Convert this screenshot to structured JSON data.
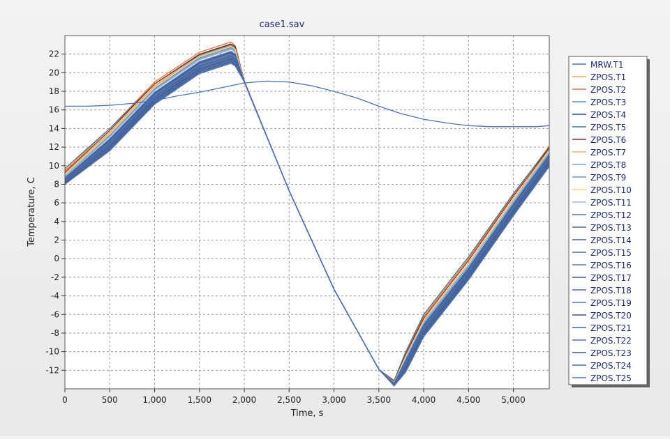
{
  "chart_data": {
    "type": "line",
    "title": "case1.sav",
    "xlabel": "Time, s",
    "ylabel": "Temperature, C",
    "xlim": [
      0,
      5400
    ],
    "ylim": [
      -14,
      24
    ],
    "grid": true,
    "legend_position": "right",
    "x_ticks": [
      0,
      500,
      1000,
      1500,
      2000,
      2500,
      3000,
      3500,
      4000,
      4500,
      5000
    ],
    "x_tick_labels": [
      "0",
      "500",
      "1,000",
      "1,500",
      "2,000",
      "2,500",
      "3,000",
      "3,500",
      "4,000",
      "4,500",
      "5,000"
    ],
    "y_ticks": [
      -12,
      -10,
      -8,
      -6,
      -4,
      -2,
      0,
      2,
      4,
      6,
      8,
      10,
      12,
      14,
      16,
      18,
      20,
      22
    ],
    "y_tick_labels": [
      "-12",
      "-10",
      "-8",
      "-6",
      "-4",
      "-2",
      "0",
      "2",
      "4",
      "6",
      "8",
      "10",
      "12",
      "14",
      "16",
      "18",
      "20",
      "22"
    ],
    "series": [
      {
        "name": "MRW.T1",
        "color": "#4a72b5",
        "x": [
          0,
          250,
          500,
          750,
          1000,
          1250,
          1500,
          1750,
          2000,
          2250,
          2500,
          2750,
          3000,
          3250,
          3500,
          3750,
          4000,
          4250,
          4500,
          4750,
          5000,
          5250,
          5400
        ],
        "y": [
          16.4,
          16.4,
          16.5,
          16.7,
          17.0,
          17.5,
          17.9,
          18.4,
          18.9,
          19.1,
          19.0,
          18.6,
          18.0,
          17.3,
          16.4,
          15.6,
          15.0,
          14.6,
          14.3,
          14.2,
          14.2,
          14.2,
          14.3
        ]
      },
      {
        "name": "ZPOS.T1",
        "color": "#f0a35a",
        "x": [
          0,
          500,
          1000,
          1500,
          1850,
          1900,
          2000,
          2500,
          3000,
          3500,
          3670,
          3800,
          4000,
          4500,
          5000,
          5400
        ],
        "y": [
          9.2,
          13.6,
          18.6,
          21.8,
          22.9,
          22.6,
          19.1,
          7.3,
          -3.3,
          -11.9,
          -13.3,
          -10.4,
          -6.6,
          -0.5,
          6.4,
          11.8
        ]
      },
      {
        "name": "ZPOS.T2",
        "color": "#e3723c",
        "x": [
          0,
          500,
          1000,
          1500,
          1850,
          1900,
          2000,
          2500,
          3000,
          3500,
          3670,
          3800,
          4000,
          4500,
          5000,
          5400
        ],
        "y": [
          9.5,
          14.0,
          19.0,
          22.2,
          23.3,
          22.9,
          19.1,
          7.3,
          -3.3,
          -11.9,
          -13.2,
          -10.2,
          -6.2,
          0.0,
          6.9,
          12.1
        ]
      },
      {
        "name": "ZPOS.T3",
        "color": "#5b88c0",
        "x": [
          0,
          500,
          1000,
          1500,
          1850,
          1900,
          2000,
          2500,
          3000,
          3500,
          3670,
          3800,
          4000,
          4500,
          5000,
          5400
        ],
        "y": [
          9.0,
          13.3,
          18.3,
          21.6,
          22.7,
          22.4,
          19.0,
          7.3,
          -3.3,
          -11.9,
          -13.3,
          -10.6,
          -6.8,
          -0.7,
          6.2,
          11.5
        ]
      },
      {
        "name": "ZPOS.T4",
        "color": "#2f4f8f",
        "x": [
          0,
          500,
          1000,
          1500,
          1850,
          1900,
          2000,
          2500,
          3000,
          3500,
          3670,
          3800,
          4000,
          4500,
          5000,
          5400
        ],
        "y": [
          8.6,
          12.8,
          17.8,
          21.1,
          22.2,
          21.9,
          19.0,
          7.3,
          -3.3,
          -11.9,
          -13.4,
          -11.0,
          -7.2,
          -1.1,
          5.8,
          11.0
        ]
      },
      {
        "name": "ZPOS.T5",
        "color": "#3a7d8c",
        "x": [
          0,
          500,
          1000,
          1500,
          1850,
          1900,
          2000,
          2500,
          3000,
          3500,
          3670,
          3800,
          4000,
          4500,
          5000,
          5400
        ],
        "y": [
          9.7,
          14.0,
          18.8,
          21.9,
          23.0,
          22.7,
          19.1,
          7.3,
          -3.3,
          -11.9,
          -13.1,
          -10.0,
          -6.0,
          0.2,
          7.0,
          12.0
        ]
      },
      {
        "name": "ZPOS.T6",
        "color": "#8b2c2c",
        "x": [
          0,
          500,
          1000,
          1500,
          1850,
          1900,
          2000,
          2500,
          3000,
          3500,
          3670,
          3800,
          4000,
          4500,
          5000,
          5400
        ],
        "y": [
          9.3,
          13.8,
          18.8,
          22.0,
          23.1,
          22.8,
          19.1,
          7.3,
          -3.3,
          -11.9,
          -13.2,
          -10.3,
          -6.4,
          -0.2,
          6.7,
          11.9
        ]
      },
      {
        "name": "ZPOS.T7",
        "color": "#e8b86a",
        "x": [
          0,
          500,
          1000,
          1500,
          1850,
          1900,
          2000,
          2500,
          3000,
          3500,
          3670,
          3800,
          4000,
          4500,
          5000,
          5400
        ],
        "y": [
          9.1,
          13.5,
          18.5,
          21.7,
          22.8,
          22.5,
          19.0,
          7.3,
          -3.3,
          -11.9,
          -13.3,
          -10.5,
          -6.7,
          -0.6,
          6.3,
          11.6
        ]
      },
      {
        "name": "ZPOS.T8",
        "color": "#7aa6d0",
        "x": [
          0,
          500,
          1000,
          1500,
          1850,
          1900,
          2000,
          2500,
          3000,
          3500,
          3670,
          3800,
          4000,
          4500,
          5000,
          5400
        ],
        "y": [
          8.9,
          13.2,
          18.2,
          21.5,
          22.6,
          22.3,
          19.0,
          7.3,
          -3.3,
          -11.9,
          -13.3,
          -10.7,
          -6.9,
          -0.8,
          6.1,
          11.4
        ]
      },
      {
        "name": "ZPOS.T9",
        "color": "#6d95c6",
        "x": [
          0,
          500,
          1000,
          1500,
          1850,
          1900,
          2000,
          2500,
          3000,
          3500,
          3670,
          3800,
          4000,
          4500,
          5000,
          5400
        ],
        "y": [
          8.8,
          13.1,
          18.1,
          21.4,
          22.5,
          22.2,
          19.0,
          7.3,
          -3.3,
          -11.9,
          -13.4,
          -10.8,
          -7.0,
          -0.9,
          6.0,
          11.3
        ]
      },
      {
        "name": "ZPOS.T10",
        "color": "#f2d28a",
        "x": [
          0,
          500,
          1000,
          1500,
          1850,
          1900,
          2000,
          2500,
          3000,
          3500,
          3670,
          3800,
          4000,
          4500,
          5000,
          5400
        ],
        "y": [
          9.0,
          13.4,
          18.4,
          21.7,
          22.8,
          22.5,
          19.0,
          7.3,
          -3.3,
          -11.9,
          -13.3,
          -10.5,
          -6.7,
          -0.6,
          6.3,
          11.6
        ]
      },
      {
        "name": "ZPOS.T11",
        "color": "#9fb8d8",
        "x": [
          0,
          500,
          1000,
          1500,
          1850,
          1900,
          2000,
          2500,
          3000,
          3500,
          3670,
          3800,
          4000,
          4500,
          5000,
          5400
        ],
        "y": [
          8.8,
          13.1,
          18.1,
          21.4,
          22.5,
          22.2,
          19.0,
          7.3,
          -3.3,
          -11.9,
          -13.4,
          -10.8,
          -7.0,
          -0.9,
          6.0,
          11.3
        ]
      },
      {
        "name": "ZPOS.T12",
        "color": "#5479b0",
        "x": [
          0,
          500,
          1000,
          1500,
          1850,
          1900,
          2000,
          2500,
          3000,
          3500,
          3670,
          3800,
          4000,
          4500,
          5000,
          5400
        ],
        "y": [
          8.7,
          12.9,
          17.9,
          21.2,
          22.3,
          22.0,
          19.0,
          7.3,
          -3.3,
          -11.9,
          -13.4,
          -10.9,
          -7.1,
          -1.0,
          5.9,
          11.2
        ]
      },
      {
        "name": "ZPOS.T13",
        "color": "#46669e",
        "x": [
          0,
          500,
          1000,
          1500,
          1850,
          1900,
          2000,
          2500,
          3000,
          3500,
          3670,
          3800,
          4000,
          4500,
          5000,
          5400
        ],
        "y": [
          8.6,
          12.8,
          17.8,
          21.1,
          22.2,
          21.9,
          19.0,
          7.3,
          -3.3,
          -11.9,
          -13.4,
          -11.0,
          -7.2,
          -1.1,
          5.8,
          11.1
        ]
      },
      {
        "name": "ZPOS.T14",
        "color": "#3f5f9a",
        "x": [
          0,
          500,
          1000,
          1500,
          1850,
          1900,
          2000,
          2500,
          3000,
          3500,
          3670,
          3800,
          4000,
          4500,
          5000,
          5400
        ],
        "y": [
          8.5,
          12.7,
          17.7,
          21.0,
          22.1,
          21.8,
          19.0,
          7.3,
          -3.3,
          -11.9,
          -13.4,
          -11.1,
          -7.3,
          -1.2,
          5.7,
          11.0
        ]
      },
      {
        "name": "ZPOS.T15",
        "color": "#4d6fa8",
        "x": [
          0,
          500,
          1000,
          1500,
          1850,
          1900,
          2000,
          2500,
          3000,
          3500,
          3670,
          3800,
          4000,
          4500,
          5000,
          5400
        ],
        "y": [
          8.5,
          12.6,
          17.6,
          20.9,
          22.0,
          21.7,
          19.0,
          7.3,
          -3.3,
          -11.9,
          -13.5,
          -11.2,
          -7.4,
          -1.3,
          5.6,
          10.9
        ]
      },
      {
        "name": "ZPOS.T16",
        "color": "#5a7cb4",
        "x": [
          0,
          500,
          1000,
          1500,
          1850,
          1900,
          2000,
          2500,
          3000,
          3500,
          3670,
          3800,
          4000,
          4500,
          5000,
          5400
        ],
        "y": [
          8.4,
          12.5,
          17.5,
          20.8,
          21.9,
          21.6,
          19.0,
          7.3,
          -3.3,
          -11.9,
          -13.5,
          -11.3,
          -7.5,
          -1.4,
          5.5,
          10.8
        ]
      },
      {
        "name": "ZPOS.T17",
        "color": "#3d5d96",
        "x": [
          0,
          500,
          1000,
          1500,
          1850,
          1900,
          2000,
          2500,
          3000,
          3500,
          3670,
          3800,
          4000,
          4500,
          5000,
          5400
        ],
        "y": [
          8.4,
          12.4,
          17.4,
          20.7,
          21.8,
          21.5,
          19.0,
          7.3,
          -3.3,
          -11.9,
          -13.5,
          -11.4,
          -7.6,
          -1.5,
          5.4,
          10.7
        ]
      },
      {
        "name": "ZPOS.T18",
        "color": "#4869a3",
        "x": [
          0,
          500,
          1000,
          1500,
          1850,
          1900,
          2000,
          2500,
          3000,
          3500,
          3670,
          3800,
          4000,
          4500,
          5000,
          5400
        ],
        "y": [
          8.3,
          12.3,
          17.3,
          20.6,
          21.7,
          21.4,
          19.0,
          7.3,
          -3.3,
          -11.9,
          -13.5,
          -11.5,
          -7.7,
          -1.6,
          5.3,
          10.6
        ]
      },
      {
        "name": "ZPOS.T19",
        "color": "#5274ad",
        "x": [
          0,
          500,
          1000,
          1500,
          1850,
          1900,
          2000,
          2500,
          3000,
          3500,
          3670,
          3800,
          4000,
          4500,
          5000,
          5400
        ],
        "y": [
          8.3,
          12.2,
          17.2,
          20.5,
          21.6,
          21.3,
          19.0,
          7.3,
          -3.3,
          -11.9,
          -13.5,
          -11.6,
          -7.8,
          -1.7,
          5.2,
          10.5
        ]
      },
      {
        "name": "ZPOS.T20",
        "color": "#35558e",
        "x": [
          0,
          500,
          1000,
          1500,
          1850,
          1900,
          2000,
          2500,
          3000,
          3500,
          3670,
          3800,
          4000,
          4500,
          5000,
          5400
        ],
        "y": [
          8.2,
          12.1,
          17.1,
          20.4,
          21.5,
          21.2,
          19.0,
          7.3,
          -3.3,
          -11.9,
          -13.6,
          -11.7,
          -7.9,
          -1.8,
          5.1,
          10.4
        ]
      },
      {
        "name": "ZPOS.T21",
        "color": "#4465a0",
        "x": [
          0,
          500,
          1000,
          1500,
          1850,
          1900,
          2000,
          2500,
          3000,
          3500,
          3670,
          3800,
          4000,
          4500,
          5000,
          5400
        ],
        "y": [
          8.2,
          12.0,
          17.0,
          20.3,
          21.4,
          21.1,
          19.0,
          7.3,
          -3.3,
          -11.9,
          -13.6,
          -11.8,
          -8.0,
          -1.9,
          5.0,
          10.3
        ]
      },
      {
        "name": "ZPOS.T22",
        "color": "#5070aa",
        "x": [
          0,
          500,
          1000,
          1500,
          1850,
          1900,
          2000,
          2500,
          3000,
          3500,
          3670,
          3800,
          4000,
          4500,
          5000,
          5400
        ],
        "y": [
          8.1,
          11.9,
          16.9,
          20.2,
          21.3,
          21.0,
          19.0,
          7.3,
          -3.3,
          -11.9,
          -13.6,
          -11.9,
          -8.1,
          -2.0,
          4.9,
          10.2
        ]
      },
      {
        "name": "ZPOS.T23",
        "color": "#3a5a94",
        "x": [
          0,
          500,
          1000,
          1500,
          1850,
          1900,
          2000,
          2500,
          3000,
          3500,
          3670,
          3800,
          4000,
          4500,
          5000,
          5400
        ],
        "y": [
          8.1,
          11.8,
          16.8,
          20.1,
          21.2,
          20.9,
          19.0,
          7.3,
          -3.3,
          -11.9,
          -13.6,
          -12.0,
          -8.2,
          -2.1,
          4.8,
          10.1
        ]
      },
      {
        "name": "ZPOS.T24",
        "color": "#4a6ca6",
        "x": [
          0,
          500,
          1000,
          1500,
          1850,
          1900,
          2000,
          2500,
          3000,
          3500,
          3670,
          3800,
          4000,
          4500,
          5000,
          5400
        ],
        "y": [
          8.0,
          11.7,
          16.7,
          20.0,
          21.1,
          20.8,
          19.0,
          7.3,
          -3.3,
          -11.9,
          -13.6,
          -12.1,
          -8.3,
          -2.2,
          4.7,
          10.0
        ]
      },
      {
        "name": "ZPOS.T25",
        "color": "#5679b2",
        "x": [
          0,
          500,
          1000,
          1500,
          1850,
          1900,
          2000,
          2500,
          3000,
          3500,
          3670,
          3800,
          4000,
          4500,
          5000,
          5400
        ],
        "y": [
          8.0,
          11.6,
          16.6,
          19.9,
          21.0,
          20.7,
          19.0,
          7.3,
          -3.3,
          -11.9,
          -13.7,
          -12.2,
          -8.4,
          -2.3,
          4.6,
          9.9
        ]
      }
    ]
  }
}
